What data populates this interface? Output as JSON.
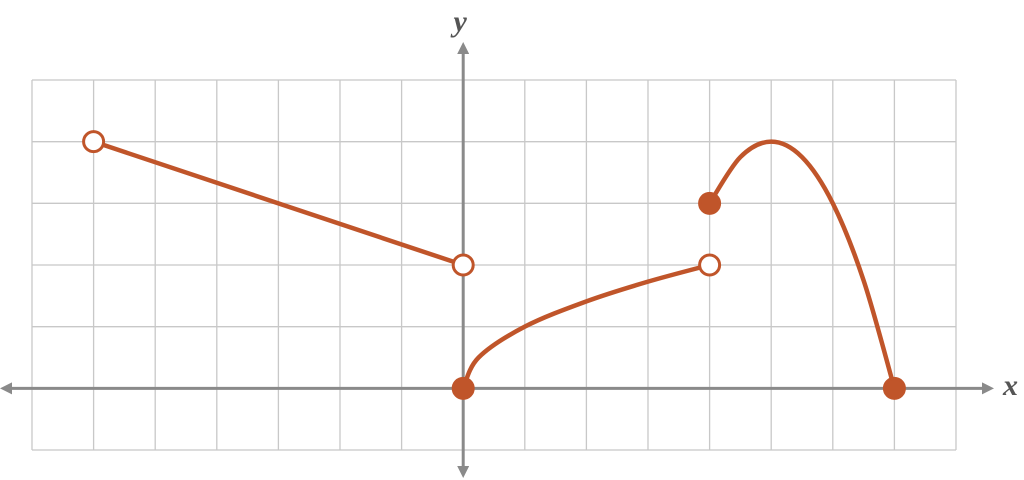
{
  "chart_data": {
    "type": "piecewise",
    "x_label": "x",
    "y_label": "y",
    "xlim": [
      -7,
      8
    ],
    "ylim": [
      -1,
      5
    ],
    "xticks": [
      -7,
      -6,
      -5,
      -4,
      -3,
      -2,
      -1,
      0,
      1,
      2,
      3,
      4,
      5,
      6,
      7,
      8
    ],
    "yticks": [
      -1,
      0,
      1,
      2,
      3,
      4,
      5
    ],
    "grid": true,
    "color": "#c0552a",
    "series": [
      {
        "x": [
          -6,
          0
        ],
        "values": [
          4,
          2
        ],
        "endpoints": [
          "open",
          "open"
        ]
      },
      {
        "x": [
          0,
          0.25,
          1,
          2,
          3,
          4
        ],
        "values": [
          0,
          0.5,
          1,
          1.41,
          1.73,
          2
        ],
        "endpoints": [
          "closed",
          "open"
        ]
      },
      {
        "x": [
          4,
          4.5,
          5,
          5.5,
          6,
          6.5,
          7
        ],
        "values": [
          3,
          3.75,
          4,
          3.75,
          3,
          1.75,
          0
        ],
        "endpoints": [
          "closed",
          "closed"
        ]
      }
    ]
  }
}
